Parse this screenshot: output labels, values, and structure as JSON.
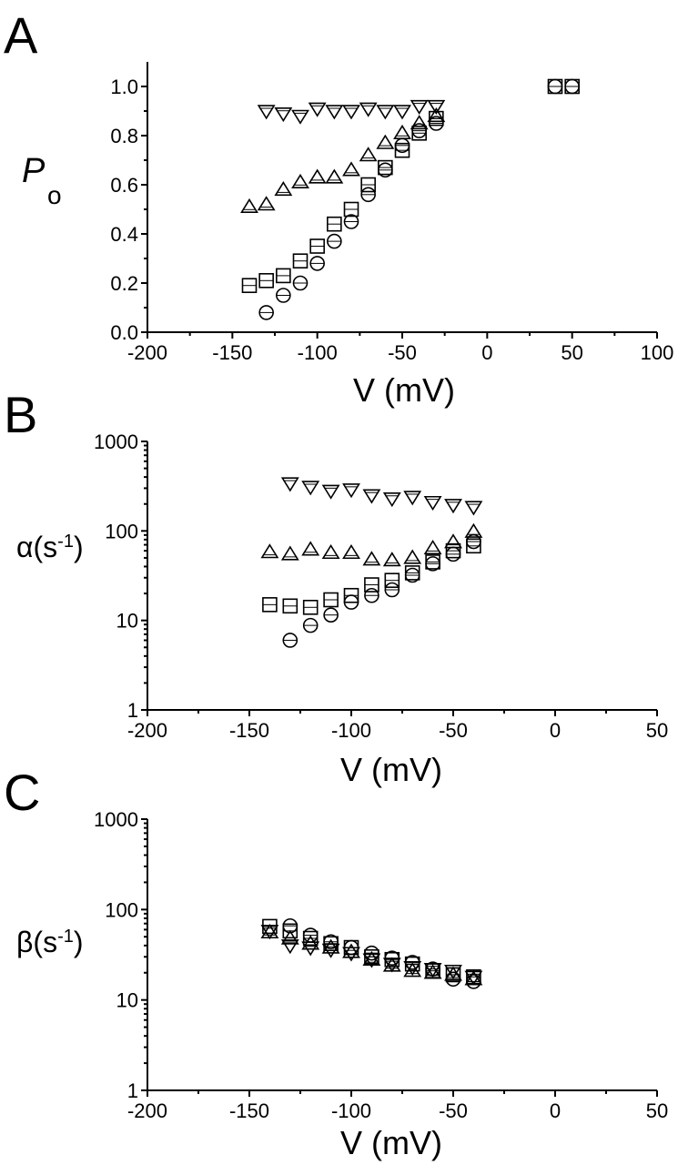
{
  "chart_data": [
    {
      "panel": "A",
      "type": "scatter",
      "xlabel": "V (mV)",
      "ylabel_main": "P",
      "ylabel_sub": "o",
      "xlim": [
        -200,
        100
      ],
      "ylim": [
        0,
        1.1
      ],
      "yscale": "linear",
      "xticks": [
        -200,
        -150,
        -100,
        -50,
        0,
        50,
        100
      ],
      "yticks": [
        0.0,
        0.2,
        0.4,
        0.6,
        0.8,
        1.0
      ],
      "ytick_labels": [
        "0.0",
        "0.2",
        "0.4",
        "0.6",
        "0.8",
        "1.0"
      ],
      "series": [
        {
          "marker": "triangle-down",
          "x": [
            -130,
            -120,
            -110,
            -100,
            -90,
            -80,
            -70,
            -60,
            -50,
            -40,
            -30
          ],
          "y": [
            0.9,
            0.89,
            0.88,
            0.91,
            0.9,
            0.9,
            0.91,
            0.9,
            0.9,
            0.92,
            0.92
          ]
        },
        {
          "marker": "triangle-up",
          "x": [
            -140,
            -130,
            -120,
            -110,
            -100,
            -90,
            -80,
            -70,
            -60,
            -50,
            -40,
            -30
          ],
          "y": [
            0.51,
            0.52,
            0.58,
            0.61,
            0.63,
            0.63,
            0.66,
            0.72,
            0.77,
            0.81,
            0.85,
            0.88
          ]
        },
        {
          "marker": "square",
          "x": [
            -140,
            -130,
            -120,
            -110,
            -100,
            -90,
            -80,
            -70,
            -60,
            -50,
            -40,
            -30,
            40,
            50
          ],
          "y": [
            0.19,
            0.21,
            0.23,
            0.29,
            0.35,
            0.44,
            0.5,
            0.6,
            0.67,
            0.74,
            0.81,
            0.87,
            1.0,
            1.0
          ]
        },
        {
          "marker": "circle",
          "x": [
            -130,
            -120,
            -110,
            -100,
            -90,
            -80,
            -70,
            -60,
            -50,
            -40,
            -30,
            40,
            50
          ],
          "y": [
            0.08,
            0.15,
            0.2,
            0.28,
            0.37,
            0.45,
            0.56,
            0.66,
            0.76,
            0.82,
            0.85,
            1.0,
            1.0
          ]
        }
      ]
    },
    {
      "panel": "B",
      "type": "scatter",
      "xlabel": "V (mV)",
      "ylabel_main": "α(s",
      "ylabel_sup": "-1",
      "ylabel_end": ")",
      "xlim": [
        -200,
        50
      ],
      "ylim": [
        1,
        1000
      ],
      "yscale": "log",
      "xticks": [
        -200,
        -150,
        -100,
        -50,
        0,
        50
      ],
      "yticks": [
        1,
        10,
        100,
        1000
      ],
      "ytick_labels": [
        "1",
        "10",
        "100",
        "1000"
      ],
      "series": [
        {
          "marker": "triangle-down",
          "x": [
            -130,
            -120,
            -110,
            -100,
            -90,
            -80,
            -70,
            -60,
            -50,
            -40
          ],
          "y": [
            340,
            310,
            280,
            290,
            250,
            230,
            240,
            210,
            195,
            185
          ]
        },
        {
          "marker": "triangle-up",
          "x": [
            -140,
            -130,
            -120,
            -110,
            -100,
            -90,
            -80,
            -70,
            -60,
            -50,
            -40
          ],
          "y": [
            58,
            55,
            62,
            57,
            57,
            48,
            47,
            50,
            64,
            75,
            98
          ]
        },
        {
          "marker": "square",
          "x": [
            -140,
            -130,
            -120,
            -110,
            -100,
            -90,
            -80,
            -70,
            -60,
            -50,
            -40
          ],
          "y": [
            15,
            14.5,
            14,
            17,
            19,
            25,
            28,
            34,
            45,
            60,
            68
          ]
        },
        {
          "marker": "circle",
          "x": [
            -130,
            -120,
            -110,
            -100,
            -90,
            -80,
            -70,
            -60,
            -50,
            -40
          ],
          "y": [
            6,
            8.8,
            11.5,
            16,
            19,
            22,
            32,
            43,
            55,
            76
          ]
        }
      ]
    },
    {
      "panel": "C",
      "type": "scatter",
      "xlabel": "V (mV)",
      "ylabel_main": "β(s",
      "ylabel_sup": "-1",
      "ylabel_end": ")",
      "xlim": [
        -200,
        50
      ],
      "ylim": [
        1,
        1000
      ],
      "yscale": "log",
      "xticks": [
        -200,
        -150,
        -100,
        -50,
        0,
        50
      ],
      "yticks": [
        1,
        10,
        100,
        1000
      ],
      "ytick_labels": [
        "1",
        "10",
        "100",
        "1000"
      ],
      "series": [
        {
          "marker": "triangle-down",
          "x": [
            -140,
            -130,
            -120,
            -110,
            -100,
            -90,
            -80,
            -70,
            -60,
            -50,
            -40
          ],
          "y": [
            58,
            40,
            38,
            36,
            33,
            28,
            25,
            23,
            22,
            21,
            18
          ]
        },
        {
          "marker": "triangle-up",
          "x": [
            -140,
            -130,
            -120,
            -110,
            -100,
            -90,
            -80,
            -70,
            -60,
            -50,
            -40
          ],
          "y": [
            56,
            48,
            42,
            38,
            34,
            28,
            24,
            21,
            20,
            19,
            17
          ]
        },
        {
          "marker": "square",
          "x": [
            -140,
            -130,
            -120,
            -110,
            -100,
            -90,
            -80,
            -70,
            -60,
            -50,
            -40
          ],
          "y": [
            65,
            58,
            48,
            42,
            38,
            30,
            28,
            25,
            21,
            19,
            18
          ]
        },
        {
          "marker": "circle",
          "x": [
            -130,
            -120,
            -110,
            -100,
            -90,
            -80,
            -70,
            -60,
            -50,
            -40
          ],
          "y": [
            66,
            52,
            44,
            38,
            33,
            29,
            26,
            22,
            17,
            16
          ]
        }
      ]
    }
  ]
}
